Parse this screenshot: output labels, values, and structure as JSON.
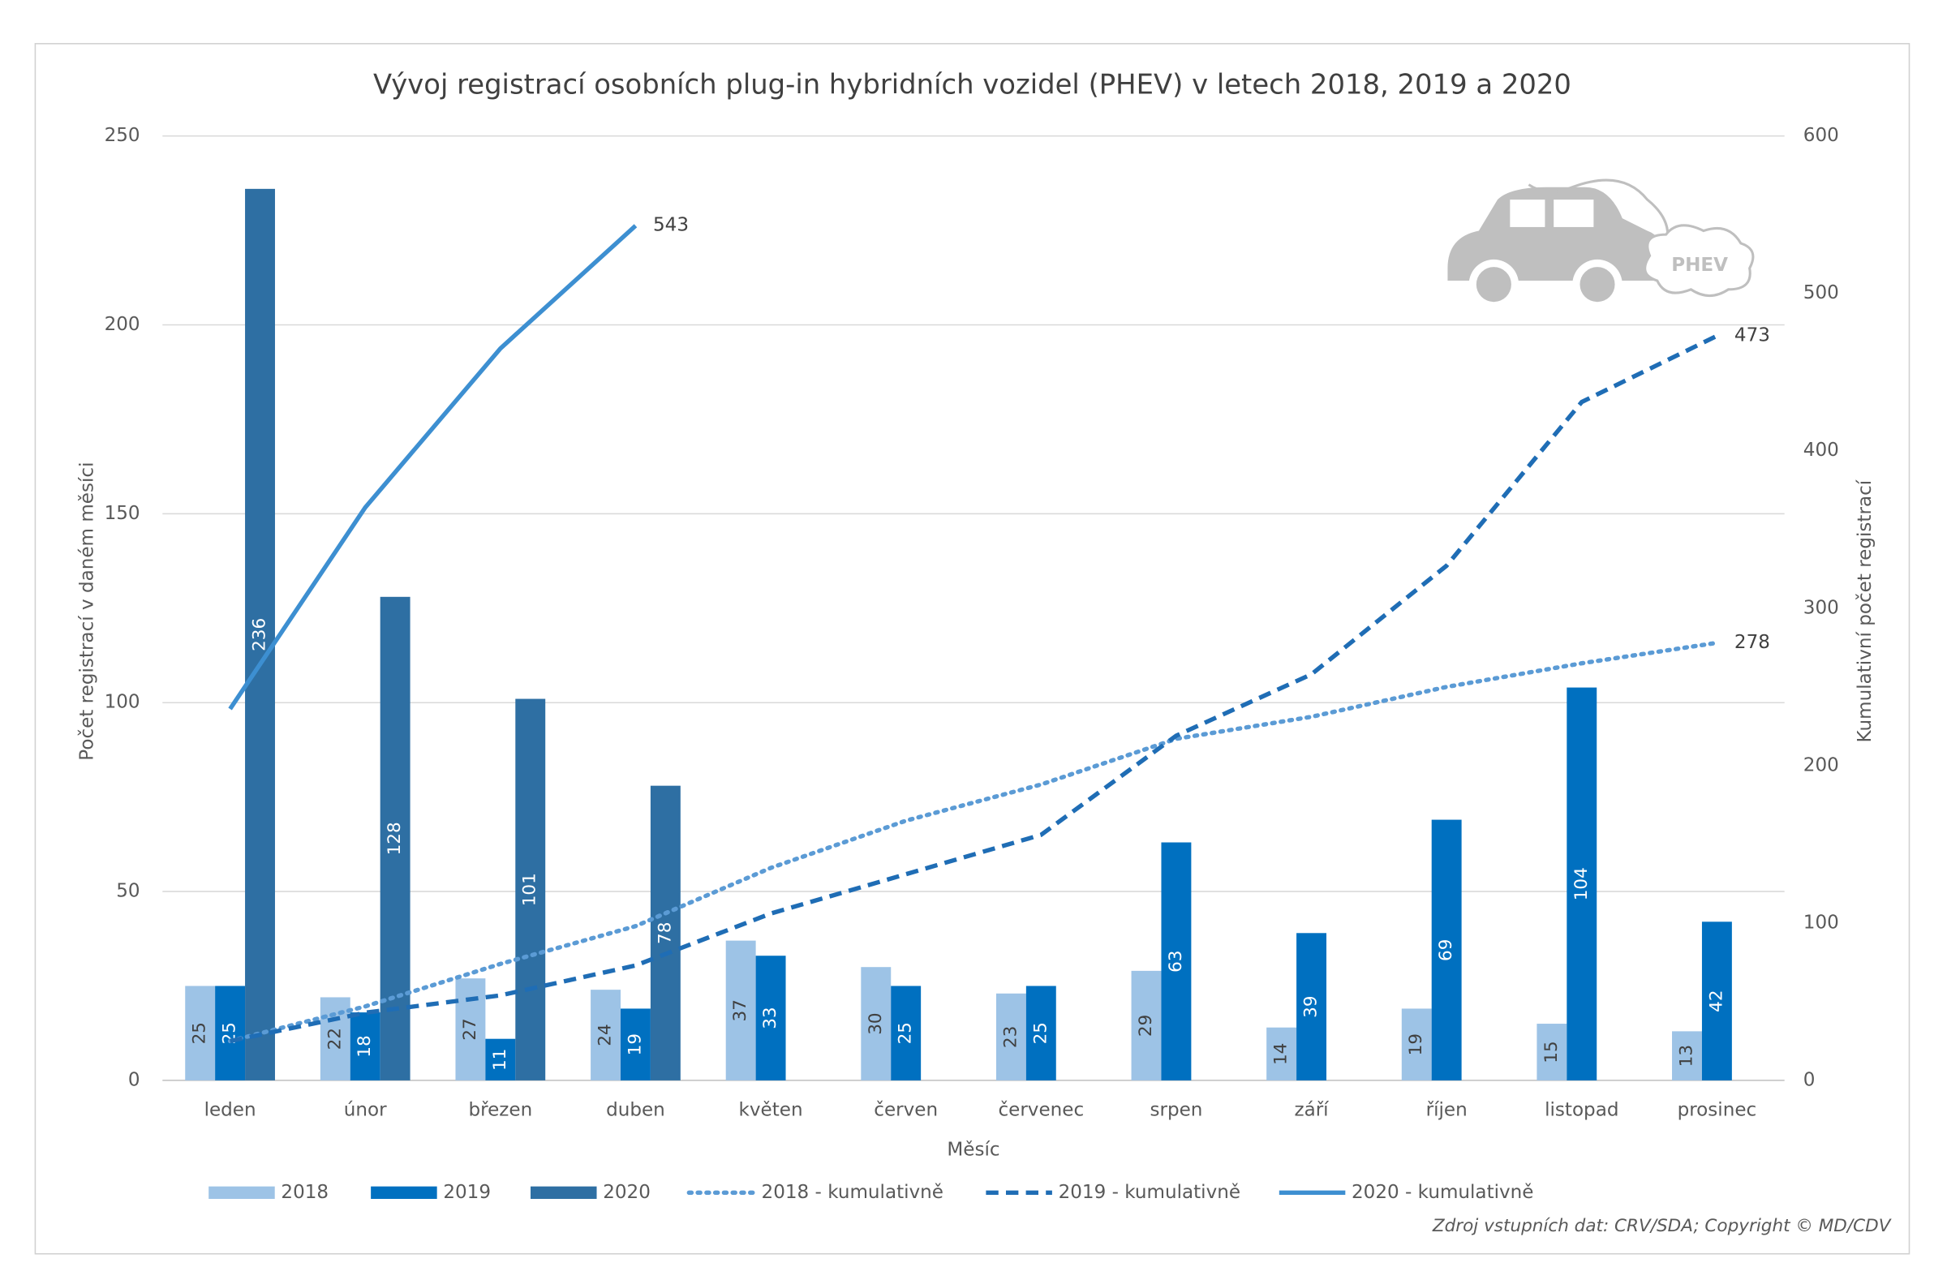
{
  "chart_data": {
    "type": "bar",
    "title": "Vývoj registrací osobních plug-in hybridních vozidel (PHEV) v letech 2018, 2019 a 2020",
    "x_label": "Měsíc",
    "y_label": "Počet registrací v daném měsíci",
    "y2_label": "Kumulativní počet registrací",
    "source": "Zdroj vstupních dat: CRV/SDA; Copyright © MD/CDV",
    "icon_text": "PHEV",
    "categories": [
      "leden",
      "únor",
      "březen",
      "duben",
      "květen",
      "červen",
      "červenec",
      "srpen",
      "září",
      "říjen",
      "listopad",
      "prosinec"
    ],
    "series": [
      {
        "name": "2018",
        "type": "bar",
        "color": "#9dc3e6",
        "label_color": "#404040",
        "values": [
          25,
          22,
          27,
          24,
          37,
          30,
          23,
          29,
          14,
          19,
          15,
          13
        ]
      },
      {
        "name": "2019",
        "type": "bar",
        "color": "#0070c0",
        "label_color": "#ffffff",
        "values": [
          25,
          18,
          11,
          19,
          33,
          25,
          25,
          63,
          39,
          69,
          104,
          42
        ]
      },
      {
        "name": "2020",
        "type": "bar",
        "color": "#2e6fa3",
        "label_color": "#ffffff",
        "values": [
          236,
          128,
          101,
          78,
          null,
          null,
          null,
          null,
          null,
          null,
          null,
          null
        ]
      },
      {
        "name": "2018 - kumulativně",
        "type": "line",
        "axis": "y2",
        "dash": "dotted",
        "color": "#5b9bd5",
        "values": [
          25,
          47,
          74,
          98,
          135,
          165,
          188,
          217,
          231,
          250,
          265,
          278
        ]
      },
      {
        "name": "2019 - kumulativně",
        "type": "line",
        "axis": "y2",
        "dash": "dashed",
        "color": "#1f6db5",
        "values": [
          25,
          43,
          54,
          73,
          106,
          131,
          156,
          219,
          258,
          327,
          431,
          473
        ]
      },
      {
        "name": "2020 - kumulativně",
        "type": "line",
        "axis": "y2",
        "dash": "solid",
        "color": "#3d8fd1",
        "values": [
          236,
          364,
          465,
          543,
          null,
          null,
          null,
          null,
          null,
          null,
          null,
          null
        ]
      }
    ],
    "ylim": [
      0,
      250
    ],
    "yticks": [
      0,
      50,
      100,
      150,
      200,
      250
    ],
    "y2lim": [
      0,
      600
    ],
    "y2ticks": [
      0,
      100,
      200,
      300,
      400,
      500,
      600
    ],
    "grid": true
  }
}
